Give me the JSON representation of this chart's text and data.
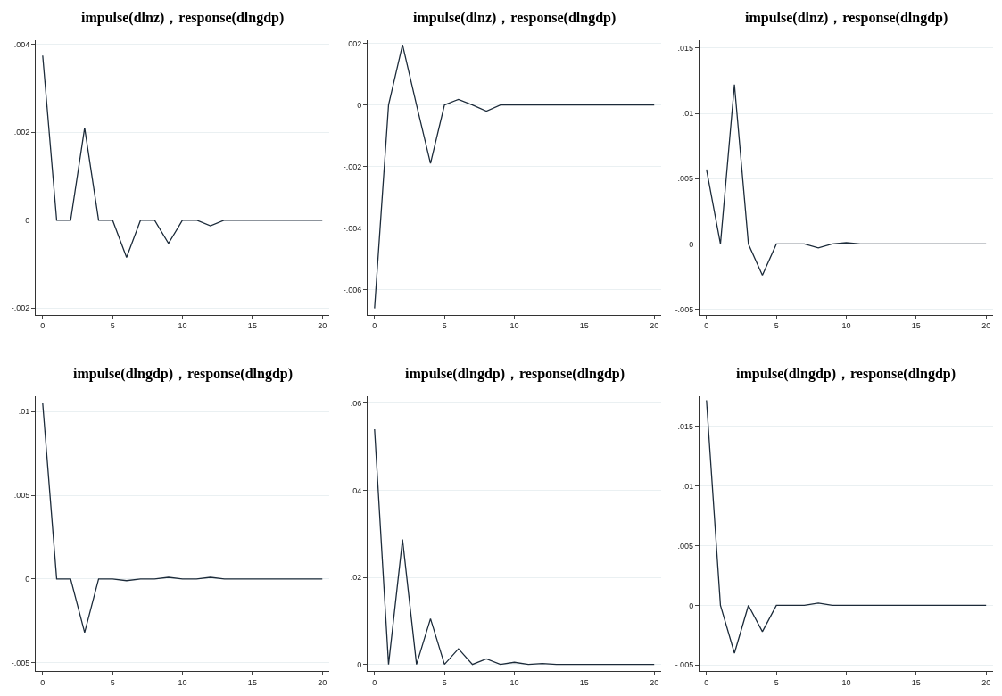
{
  "chart_data": [
    {
      "type": "line",
      "title": "impulse(dlnz)，response(dlngdp)",
      "x": [
        0,
        1,
        2,
        3,
        4,
        5,
        6,
        7,
        8,
        9,
        10,
        11,
        12,
        13,
        14,
        15,
        16,
        17,
        18,
        19,
        20
      ],
      "series": [
        {
          "color": "#1c2b3a",
          "values": [
            0.00375,
            0,
            0,
            0.0021,
            0,
            0,
            -0.00085,
            0,
            0,
            -0.00053,
            0,
            0,
            -0.00013,
            0,
            0,
            0,
            0,
            0,
            0,
            0,
            0
          ]
        }
      ],
      "xlim": [
        -0.5,
        20.5
      ],
      "xticks": [
        0,
        5,
        10,
        15,
        20
      ],
      "ylim": [
        -0.00215,
        0.0041
      ],
      "yticks": [
        {
          "value": -0.002,
          "label": "-.002"
        },
        0,
        {
          "value": 0.002,
          "label": ".002"
        },
        {
          "value": 0.004,
          "label": ".004"
        }
      ],
      "grid": "y",
      "marker": "none",
      "line_style": "solid"
    },
    {
      "type": "line",
      "title": "impulse(dlnz)，response(dlngdp)",
      "x": [
        0,
        1,
        2,
        3,
        4,
        5,
        6,
        7,
        8,
        9,
        10,
        11,
        12,
        13,
        14,
        15,
        16,
        17,
        18,
        19,
        20
      ],
      "series": [
        {
          "color": "#1c2b3a",
          "values": [
            -0.0066,
            0,
            0.00195,
            0,
            -0.0019,
            0,
            0.00018,
            0,
            -0.0002,
            0,
            0,
            0,
            0,
            0,
            0,
            0,
            0,
            0,
            0,
            0,
            0
          ]
        }
      ],
      "xlim": [
        -0.5,
        20.5
      ],
      "xticks": [
        0,
        5,
        10,
        15,
        20
      ],
      "ylim": [
        -0.0068,
        0.0021
      ],
      "yticks": [
        {
          "value": -0.006,
          "label": "-.006"
        },
        {
          "value": -0.004,
          "label": "-.004"
        },
        {
          "value": -0.002,
          "label": "-.002"
        },
        0,
        {
          "value": 0.002,
          "label": ".002"
        }
      ],
      "grid": "y",
      "marker": "none",
      "line_style": "solid"
    },
    {
      "type": "line",
      "title": "impulse(dlnz)，response(dlngdp)",
      "x": [
        0,
        1,
        2,
        3,
        4,
        5,
        6,
        7,
        8,
        9,
        10,
        11,
        12,
        13,
        14,
        15,
        16,
        17,
        18,
        19,
        20
      ],
      "series": [
        {
          "color": "#1c2b3a",
          "values": [
            0.0057,
            0,
            0.0122,
            0,
            -0.0024,
            0,
            0,
            0,
            -0.0003,
            0,
            0.0001,
            0,
            0,
            0,
            0,
            0,
            0,
            0,
            0,
            0,
            0
          ]
        }
      ],
      "xlim": [
        -0.5,
        20.5
      ],
      "xticks": [
        0,
        5,
        10,
        15,
        20
      ],
      "ylim": [
        -0.0054,
        0.0156
      ],
      "yticks": [
        {
          "value": -0.005,
          "label": "-.005"
        },
        0,
        {
          "value": 0.005,
          "label": ".005"
        },
        {
          "value": 0.01,
          "label": ".01"
        },
        {
          "value": 0.015,
          "label": ".015"
        }
      ],
      "grid": "y",
      "marker": "none",
      "line_style": "solid"
    },
    {
      "type": "line",
      "title": "impulse(dlngdp)，response(dlngdp)",
      "x": [
        0,
        1,
        2,
        3,
        4,
        5,
        6,
        7,
        8,
        9,
        10,
        11,
        12,
        13,
        14,
        15,
        16,
        17,
        18,
        19,
        20
      ],
      "series": [
        {
          "color": "#1c2b3a",
          "values": [
            0.0105,
            0,
            0,
            -0.0032,
            0,
            0,
            -0.0001,
            0,
            0,
            0.0001,
            0,
            0,
            0.0001,
            0,
            0,
            0,
            0,
            0,
            0,
            0,
            0
          ]
        }
      ],
      "xlim": [
        -0.5,
        20.5
      ],
      "xticks": [
        0,
        5,
        10,
        15,
        20
      ],
      "ylim": [
        -0.0055,
        0.0109
      ],
      "yticks": [
        {
          "value": -0.005,
          "label": "-.005"
        },
        0,
        {
          "value": 0.005,
          "label": ".005"
        },
        {
          "value": 0.01,
          "label": ".01"
        }
      ],
      "grid": "y",
      "marker": "none",
      "line_style": "solid"
    },
    {
      "type": "line",
      "title": "impulse(dlngdp)，response(dlngdp)",
      "x": [
        0,
        1,
        2,
        3,
        4,
        5,
        6,
        7,
        8,
        9,
        10,
        11,
        12,
        13,
        14,
        15,
        16,
        17,
        18,
        19,
        20
      ],
      "series": [
        {
          "color": "#1c2b3a",
          "values": [
            0.054,
            0,
            0.0287,
            0,
            0.0105,
            0,
            0.0036,
            0,
            0.0013,
            0,
            0.0005,
            0,
            0.0002,
            0,
            0,
            0,
            0,
            0,
            0,
            0,
            0
          ]
        }
      ],
      "xlim": [
        -0.5,
        20.5
      ],
      "xticks": [
        0,
        5,
        10,
        15,
        20
      ],
      "ylim": [
        -0.0015,
        0.0615
      ],
      "yticks": [
        0,
        {
          "value": 0.02,
          "label": ".02"
        },
        {
          "value": 0.04,
          "label": ".04"
        },
        {
          "value": 0.06,
          "label": ".06"
        }
      ],
      "grid": "y",
      "marker": "none",
      "line_style": "solid"
    },
    {
      "type": "line",
      "title": "impulse(dlngdp)，response(dlngdp)",
      "x": [
        0,
        1,
        2,
        3,
        4,
        5,
        6,
        7,
        8,
        9,
        10,
        11,
        12,
        13,
        14,
        15,
        16,
        17,
        18,
        19,
        20
      ],
      "series": [
        {
          "color": "#1c2b3a",
          "values": [
            0.0172,
            0,
            -0.004,
            0,
            -0.0022,
            0,
            0,
            0,
            0.0002,
            0,
            0,
            0,
            0,
            0,
            0,
            0,
            0,
            0,
            0,
            0,
            0
          ]
        }
      ],
      "xlim": [
        -0.5,
        20.5
      ],
      "xticks": [
        0,
        5,
        10,
        15,
        20
      ],
      "ylim": [
        -0.0055,
        0.0175
      ],
      "yticks": [
        {
          "value": -0.005,
          "label": "-.005"
        },
        0,
        {
          "value": 0.005,
          "label": ".005"
        },
        {
          "value": 0.01,
          "label": ".01"
        },
        {
          "value": 0.015,
          "label": ".015"
        }
      ],
      "grid": "y",
      "marker": "none",
      "line_style": "solid"
    }
  ]
}
